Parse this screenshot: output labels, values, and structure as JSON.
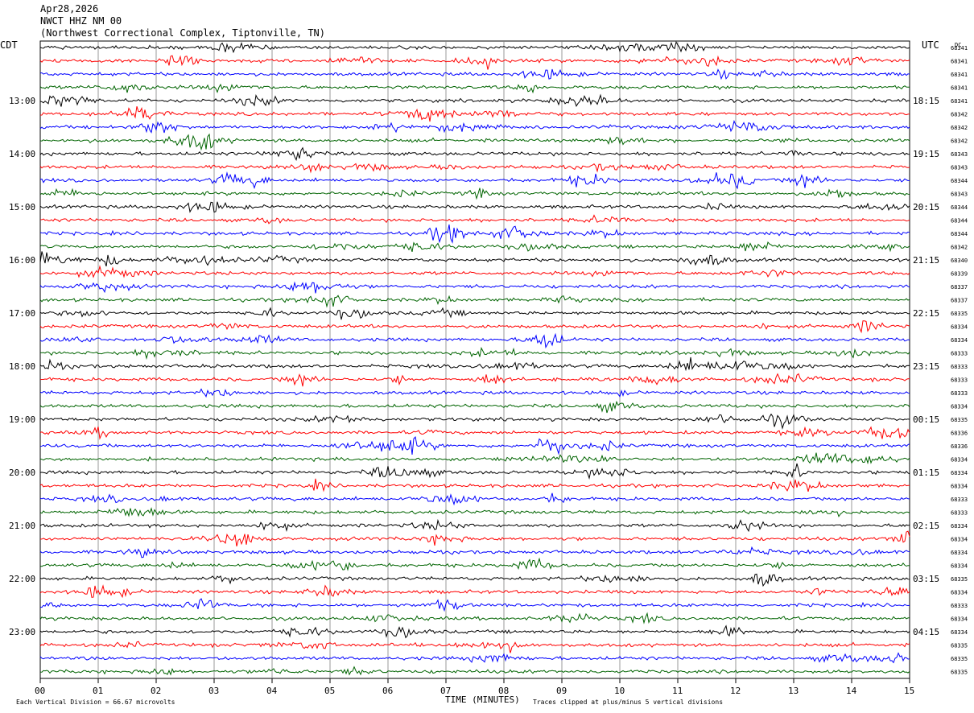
{
  "header": {
    "date": "Apr28,2026",
    "station": "NWCT HHZ NM 00",
    "location": "(Northwest Correctional Complex, Tiptonville, TN)"
  },
  "left_tz": "CDT",
  "right_tz": "UTC",
  "dc_label": "DC",
  "footer": {
    "division": "Each Vertical Division =   66.67 microvolts",
    "clip_note": "Traces clipped at plus/minus 5 vertical divisions",
    "x_title": "TIME (MINUTES)"
  },
  "colors": {
    "trace_cycle": [
      "#000000",
      "#ff0000",
      "#0000ff",
      "#006400"
    ],
    "grid": "#808080"
  },
  "chart_data": {
    "type": "line",
    "title": "NWCT HHZ NM 00",
    "xlabel": "TIME (MINUTES)",
    "ylabel": "",
    "xlim": [
      0,
      15
    ],
    "x_ticks": [
      "00",
      "01",
      "02",
      "03",
      "04",
      "05",
      "06",
      "07",
      "08",
      "09",
      "10",
      "11",
      "12",
      "13",
      "14",
      "15"
    ],
    "left_hour_labels": [
      {
        "row": 4,
        "label": "13:00"
      },
      {
        "row": 8,
        "label": "14:00"
      },
      {
        "row": 12,
        "label": "15:00"
      },
      {
        "row": 16,
        "label": "16:00"
      },
      {
        "row": 20,
        "label": "17:00"
      },
      {
        "row": 24,
        "label": "18:00"
      },
      {
        "row": 28,
        "label": "19:00"
      },
      {
        "row": 32,
        "label": "20:00"
      },
      {
        "row": 36,
        "label": "21:00"
      },
      {
        "row": 40,
        "label": "22:00"
      },
      {
        "row": 44,
        "label": "23:00"
      }
    ],
    "right_hour_labels": [
      {
        "row": 4,
        "label": "18:15"
      },
      {
        "row": 8,
        "label": "19:15"
      },
      {
        "row": 12,
        "label": "20:15"
      },
      {
        "row": 16,
        "label": "21:15"
      },
      {
        "row": 20,
        "label": "22:15"
      },
      {
        "row": 24,
        "label": "23:15"
      },
      {
        "row": 28,
        "label": "00:15"
      },
      {
        "row": 32,
        "label": "01:15"
      },
      {
        "row": 36,
        "label": "02:15"
      },
      {
        "row": 40,
        "label": "03:15"
      },
      {
        "row": 44,
        "label": "04:15"
      }
    ],
    "dc_offsets": [
      "68341",
      "68341",
      "68341",
      "68341",
      "68341",
      "68342",
      "68342",
      "68342",
      "68343",
      "68343",
      "68344",
      "68343",
      "68344",
      "68344",
      "68344",
      "68342",
      "68340",
      "68339",
      "68337",
      "68337",
      "68335",
      "68334",
      "68334",
      "68333",
      "68333",
      "68333",
      "68333",
      "68334",
      "68335",
      "68336",
      "68336",
      "68334",
      "68334",
      "68334",
      "68333",
      "68333",
      "68334",
      "68334",
      "68334",
      "68334",
      "68335",
      "68334",
      "68333",
      "68334",
      "68334",
      "68335",
      "68335",
      "68335"
    ],
    "trace_rows": 48,
    "trace_minutes": 15,
    "notable_events": [
      {
        "row": 1,
        "minute": 2.4,
        "amp": 1.0
      },
      {
        "row": 1,
        "minute": 7.6,
        "amp": 0.9
      },
      {
        "row": 10,
        "minute": 13.2,
        "amp": 0.9
      },
      {
        "row": 14,
        "minute": 7.0,
        "amp": 1.4
      },
      {
        "row": 22,
        "minute": 8.7,
        "amp": 1.3
      },
      {
        "row": 25,
        "minute": 4.5,
        "amp": 0.8
      },
      {
        "row": 30,
        "minute": 8.8,
        "amp": 0.8
      },
      {
        "row": 37,
        "minute": 15.0,
        "amp": 1.6
      },
      {
        "row": 40,
        "minute": 12.5,
        "amp": 0.9
      },
      {
        "row": 42,
        "minute": 2.8,
        "amp": 0.8
      }
    ]
  }
}
